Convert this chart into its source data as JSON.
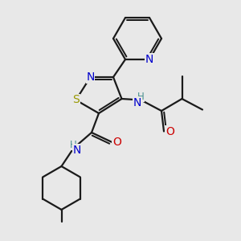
{
  "bg_color": "#e8e8e8",
  "bond_color": "#1a1a1a",
  "bond_width": 1.6,
  "atom_colors": {
    "N": "#0000cc",
    "S": "#999900",
    "O": "#cc0000",
    "C": "#1a1a1a",
    "H": "#4a9090"
  },
  "font_size_atom": 10,
  "font_size_small": 8.5
}
